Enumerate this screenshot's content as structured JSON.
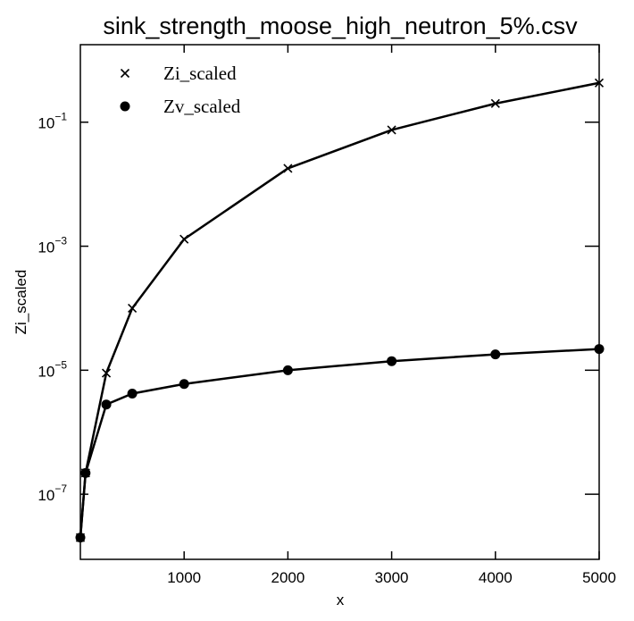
{
  "chart_data": {
    "type": "line",
    "title": "sink_strength_moose_high_neutron_5%.csv",
    "xlabel": "x",
    "ylabel": "Zi_scaled",
    "xlim": [
      0,
      5000
    ],
    "ylim_log10": [
      -8.05,
      0.25
    ],
    "yscale": "log",
    "grid": false,
    "legend_position": "top-left",
    "x_ticks": [
      {
        "value": 1000,
        "label": "1000"
      },
      {
        "value": 2000,
        "label": "2000"
      },
      {
        "value": 3000,
        "label": "3000"
      },
      {
        "value": 4000,
        "label": "4000"
      },
      {
        "value": 5000,
        "label": "5000"
      }
    ],
    "y_ticks": [
      {
        "exp": -7,
        "base": "10",
        "exponent": "−7"
      },
      {
        "exp": -5,
        "base": "10",
        "exponent": "−5"
      },
      {
        "exp": -3,
        "base": "10",
        "exponent": "−3"
      },
      {
        "exp": -1,
        "base": "10",
        "exponent": "−1"
      }
    ],
    "series": [
      {
        "name": "Zi_scaled",
        "marker": "x",
        "color": "#000000",
        "x": [
          0,
          50,
          250,
          500,
          1000,
          2000,
          3000,
          4000,
          5000
        ],
        "y": [
          2e-08,
          2.2e-07,
          9e-06,
          0.0001,
          0.0013,
          0.018,
          0.075,
          0.2,
          0.43
        ]
      },
      {
        "name": "Zv_scaled",
        "marker": "o",
        "color": "#000000",
        "x": [
          0,
          50,
          250,
          500,
          1000,
          2000,
          3000,
          4000,
          5000
        ],
        "y": [
          2e-08,
          2.2e-07,
          2.8e-06,
          4.2e-06,
          6e-06,
          1e-05,
          1.4e-05,
          1.8e-05,
          2.2e-05
        ]
      }
    ]
  }
}
